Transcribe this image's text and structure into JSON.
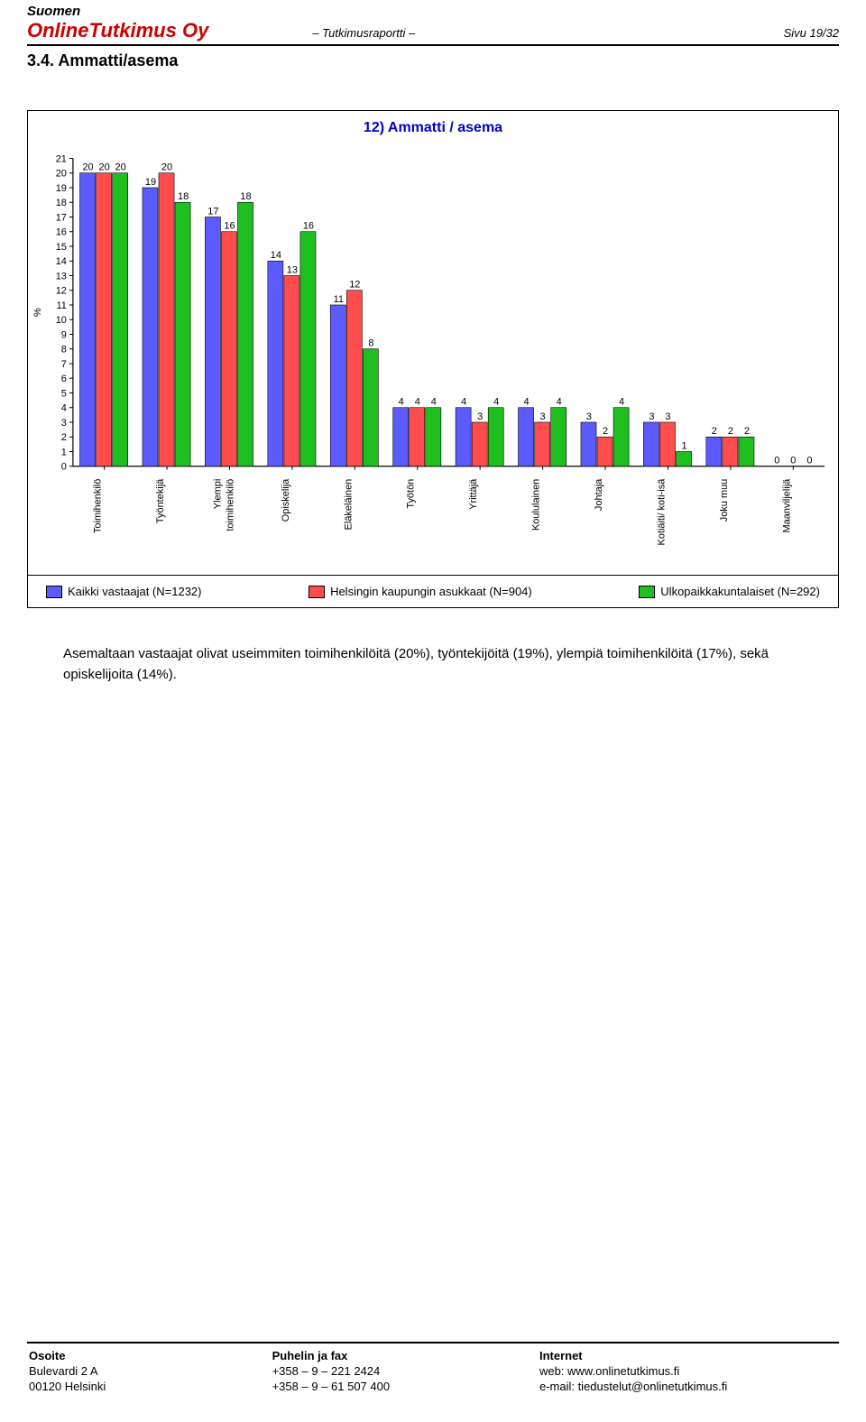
{
  "header": {
    "line1": "Suomen",
    "company": "OnlineTutkimus Oy",
    "report": "– Tutkimusraportti –",
    "page": "Sivu 19/32"
  },
  "section": "3.4. Ammatti/asema",
  "chart": {
    "title": "12) Ammatti / asema",
    "type": "bar",
    "ylabel": "%",
    "ylim": [
      0,
      21
    ],
    "ytick_step": 1,
    "categories": [
      "Toimihenkilö",
      "Työntekijä",
      "Ylempi toimihenkilö",
      "Opiskelija",
      "Eläkeläinen",
      "Työtön",
      "Yrittäjä",
      "Koululainen",
      "Johtaja",
      "Kotiäiti/ koti-isä",
      "Joku muu",
      "Maanviljelijä"
    ],
    "category_label_override": {
      "2": [
        "Ylempi",
        "toimihenkilö"
      ]
    },
    "series": [
      {
        "name": "Kaikki vastaajat (N=1232)",
        "color": "#5b5bff",
        "values": [
          20,
          19,
          17,
          14,
          11,
          4,
          4,
          4,
          3,
          3,
          2,
          0
        ]
      },
      {
        "name": "Helsingin kaupungin asukkaat (N=904)",
        "color": "#ff4d4d",
        "values": [
          20,
          20,
          16,
          13,
          12,
          4,
          3,
          3,
          2,
          3,
          2,
          0
        ]
      },
      {
        "name": "Ulkopaikkakuntalaiset (N=292)",
        "color": "#1fbf1f",
        "values": [
          20,
          18,
          18,
          16,
          8,
          4,
          4,
          4,
          4,
          1,
          2,
          0
        ]
      }
    ],
    "bar_width": 0.26,
    "background_color": "#ffffff",
    "axis_color": "#000000",
    "label_fontsize": 11,
    "value_fontsize": 11,
    "title_fontsize": 16
  },
  "body_text": "Asemaltaan vastaajat olivat useimmiten toimihenkilöitä (20%), työntekijöitä (19%), ylempiä toimihenkilöitä (17%), sekä opiskelijoita (14%).",
  "footer": {
    "col1_head": "Osoite",
    "col1_l1": "Bulevardi 2 A",
    "col1_l2": "00120 Helsinki",
    "col2_head": "Puhelin ja fax",
    "col2_l1": "+358 – 9 – 221 2424",
    "col2_l2": "+358 – 9 – 61 507 400",
    "col3_head": "Internet",
    "col3_l1": "web: www.onlinetutkimus.fi",
    "col3_l2": "e-mail: tiedustelut@onlinetutkimus.fi"
  }
}
